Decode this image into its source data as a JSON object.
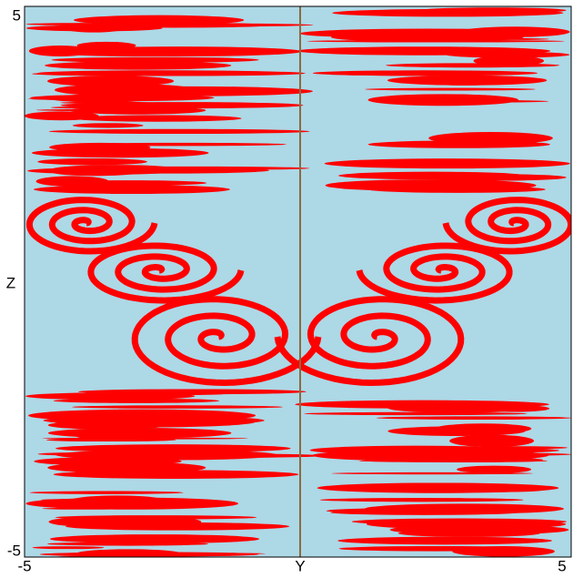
{
  "chart_data": {
    "type": "basin",
    "x_label": "Y",
    "y_label": "Z",
    "xlim": [
      -5,
      5
    ],
    "ylim": [
      -5,
      5
    ],
    "xticks": [
      -5,
      5
    ],
    "yticks": [
      -5,
      5
    ],
    "colors": [
      "#add8e6",
      "#ff0000"
    ]
  }
}
